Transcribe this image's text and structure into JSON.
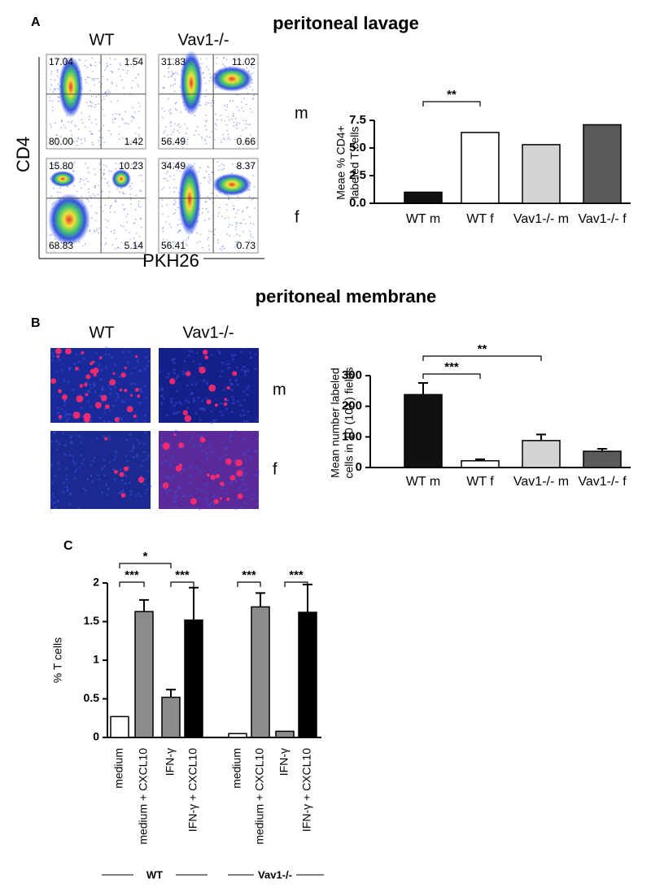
{
  "panel_a": {
    "label": "A",
    "title": "peritoneal   lavage",
    "columns": [
      "WT",
      "Vav1-/-"
    ],
    "rows": [
      "m",
      "f"
    ],
    "y_axis": "CD4",
    "x_axis": "PKH26",
    "plots": [
      {
        "quadrants": [
          "17.04",
          "1.54",
          "80.00",
          "1.42"
        ]
      },
      {
        "quadrants": [
          "31.83",
          "11.02",
          "56.49",
          "0.66"
        ]
      },
      {
        "quadrants": [
          "15.80",
          "10.23",
          "68.83",
          "5.14"
        ]
      },
      {
        "quadrants": [
          "34.49",
          "8.37",
          "56.41",
          "0.73"
        ]
      }
    ]
  },
  "panel_b": {
    "label": "B",
    "title": "peritoneal membrane",
    "columns": [
      "WT",
      "Vav1-/-"
    ],
    "rows": [
      "m",
      "f"
    ]
  },
  "panel_c": {
    "label": "C",
    "groups": [
      "WT",
      "Vav1-/-"
    ]
  },
  "chart_data": [
    {
      "type": "bar",
      "ylabel": [
        "Meae % CD4+",
        "labeled T cells"
      ],
      "categories": [
        "WT m",
        "WT f",
        "Vav1-/- m",
        "Vav1-/- f"
      ],
      "values": [
        1.0,
        6.4,
        5.3,
        7.1
      ],
      "colors": [
        "#111111",
        "#ffffff",
        "#d4d4d4",
        "#5a5a5a"
      ],
      "ylim": [
        0,
        7.5
      ],
      "yticks": [
        {
          "value": 0,
          "label": "0.0"
        },
        2.5,
        {
          "value": 5,
          "label": "5.0"
        },
        7.5
      ],
      "annotations": [
        "**"
      ]
    },
    {
      "type": "bar",
      "ylabel": [
        "Mean number labeled",
        "cells in 10 (10X) fields"
      ],
      "categories": [
        "WT m",
        "WT f",
        "Vav1-/- m",
        "Vav1-/- f"
      ],
      "values": [
        238,
        22,
        88,
        53
      ],
      "errors": [
        38,
        5,
        20,
        8
      ],
      "colors": [
        "#111111",
        "#ffffff",
        "#d4d4d4",
        "#5a5a5a"
      ],
      "ylim": [
        0,
        300
      ],
      "yticks": [
        0,
        100,
        200,
        300
      ],
      "annotations": [
        "***",
        "**"
      ]
    },
    {
      "type": "bar",
      "ylabel": "% T cells",
      "categories": [
        "medium",
        "medium + CXCL10",
        "IFN-γ",
        "IFN-γ + CXCL10",
        "medium",
        "medium + CXCL10",
        "IFN-γ",
        "IFN-γ + CXCL10"
      ],
      "values": [
        0.27,
        1.63,
        0.52,
        1.52,
        0.05,
        1.69,
        0.08,
        1.62
      ],
      "errors": [
        null,
        0.15,
        0.1,
        0.42,
        null,
        0.18,
        null,
        0.36
      ],
      "colors": [
        "#ffffff",
        "#8c8c8c",
        "#8c8c8c",
        "#000000",
        "#ffffff",
        "#8c8c8c",
        "#8c8c8c",
        "#000000"
      ],
      "ylim": [
        0,
        2
      ],
      "yticks": [
        0,
        0.5,
        1,
        1.5,
        2
      ],
      "annotations": [
        "*",
        "***",
        "***",
        "***",
        "***"
      ]
    }
  ]
}
